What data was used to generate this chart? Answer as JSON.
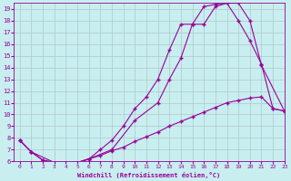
{
  "background_color": "#c8eef0",
  "grid_color": "#b0c8c8",
  "line_color": "#990099",
  "xlabel": "Windchill (Refroidissement éolien,°C)",
  "xlim": [
    -0.5,
    23
  ],
  "ylim": [
    6,
    19.5
  ],
  "yticks": [
    6,
    7,
    8,
    9,
    10,
    11,
    12,
    13,
    14,
    15,
    16,
    17,
    18,
    19
  ],
  "xticks": [
    0,
    1,
    2,
    3,
    4,
    5,
    6,
    7,
    8,
    9,
    10,
    11,
    12,
    13,
    14,
    15,
    16,
    17,
    18,
    19,
    20,
    21,
    22,
    23
  ],
  "line1_x": [
    0,
    1,
    2,
    3,
    4,
    5,
    6,
    7,
    8,
    9,
    10,
    11,
    12,
    13,
    14,
    15,
    16,
    17,
    18,
    19,
    20,
    21,
    22,
    23
  ],
  "line1_y": [
    7.8,
    6.8,
    6.1,
    5.9,
    5.9,
    5.9,
    6.2,
    6.5,
    6.9,
    7.2,
    7.7,
    8.1,
    8.5,
    9.0,
    9.4,
    9.8,
    10.2,
    10.6,
    11.0,
    11.2,
    11.4,
    11.5,
    10.5,
    10.3
  ],
  "line2_x": [
    0,
    1,
    2,
    3,
    4,
    5,
    6,
    7,
    8,
    9,
    10,
    11,
    12,
    13,
    14,
    15,
    16,
    17,
    18,
    19,
    20,
    21,
    22,
    23
  ],
  "line2_y": [
    7.8,
    6.8,
    6.1,
    5.9,
    5.9,
    5.9,
    6.2,
    7.0,
    7.8,
    9.0,
    10.5,
    11.5,
    13.0,
    15.5,
    17.7,
    17.7,
    19.2,
    19.4,
    19.5,
    18.0,
    16.3,
    14.3,
    10.5,
    10.3
  ],
  "line3_x": [
    0,
    1,
    3,
    5,
    6,
    8,
    10,
    12,
    13,
    14,
    15,
    16,
    17,
    18,
    19,
    20,
    21,
    23
  ],
  "line3_y": [
    7.8,
    6.8,
    5.9,
    5.9,
    6.2,
    7.0,
    9.5,
    11.0,
    13.0,
    14.8,
    17.7,
    17.7,
    19.2,
    19.5,
    19.5,
    18.0,
    14.2,
    10.3
  ],
  "figsize": [
    3.2,
    2.0
  ],
  "dpi": 100
}
